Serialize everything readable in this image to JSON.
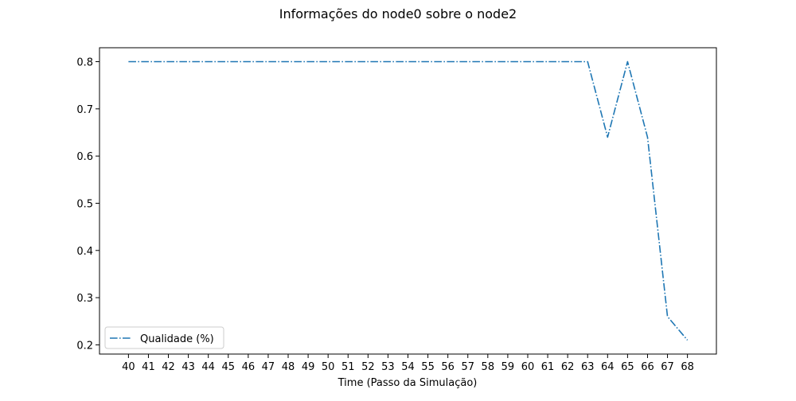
{
  "chart_data": {
    "type": "line",
    "title": "Informações do node0 sobre o node2",
    "xlabel": "Time (Passo da Simulação)",
    "ylabel": "",
    "x": [
      40,
      41,
      42,
      43,
      44,
      45,
      46,
      47,
      48,
      49,
      50,
      51,
      52,
      53,
      54,
      55,
      56,
      57,
      58,
      59,
      60,
      61,
      62,
      63,
      64,
      65,
      66,
      67,
      68
    ],
    "xticks": [
      "40",
      "41",
      "42",
      "43",
      "44",
      "45",
      "46",
      "47",
      "48",
      "49",
      "50",
      "51",
      "52",
      "53",
      "54",
      "55",
      "56",
      "57",
      "58",
      "59",
      "60",
      "61",
      "62",
      "63",
      "64",
      "65",
      "66",
      "67",
      "68"
    ],
    "yticks": [
      "0.2",
      "0.3",
      "0.4",
      "0.5",
      "0.6",
      "0.7",
      "0.8"
    ],
    "xlim": [
      38.55,
      69.45
    ],
    "ylim": [
      0.1805,
      0.8295
    ],
    "series": [
      {
        "name": "Qualidade (%)",
        "color": "#1f77b4",
        "line_style": "dash-dot",
        "values": [
          0.8,
          0.8,
          0.8,
          0.8,
          0.8,
          0.8,
          0.8,
          0.8,
          0.8,
          0.8,
          0.8,
          0.8,
          0.8,
          0.8,
          0.8,
          0.8,
          0.8,
          0.8,
          0.8,
          0.8,
          0.8,
          0.8,
          0.8,
          0.8,
          0.64,
          0.8,
          0.64,
          0.26,
          0.21
        ]
      }
    ],
    "legend_position": "lower-left",
    "grid": false
  }
}
